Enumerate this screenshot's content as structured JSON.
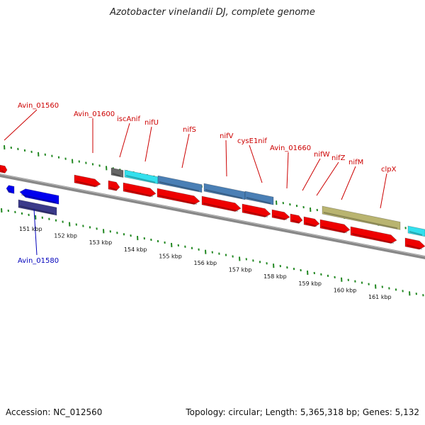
{
  "title": "Azotobacter vinelandii DJ, complete genome",
  "footer": {
    "accession": "Accession: NC_012560",
    "summary": "Topology: circular; Length: 5,365,318 bp; Genes: 5,132"
  },
  "colors": {
    "forward_gene": "#ee0000",
    "reverse_gene": "#0000ee",
    "label_forward": "#cc0000",
    "label_reverse": "#0000bb",
    "backbone": "#888888",
    "ticks": "#228822",
    "cyan": "#33e0ee",
    "steel": "#4a7fb5",
    "khaki": "#b9b470",
    "navy": "#3b3a8a",
    "gray": "#666666"
  },
  "kbp_labels": [
    "151 kbp",
    "152 kbp",
    "153 kbp",
    "154 kbp",
    "155 kbp",
    "156 kbp",
    "157 kbp",
    "158 kbp",
    "159 kbp",
    "160 kbp",
    "161 kbp"
  ],
  "gene_labels": [
    {
      "name": "Avin_01560",
      "strand": "forward"
    },
    {
      "name": "Avin_01600",
      "strand": "forward"
    },
    {
      "name": "iscAnif",
      "strand": "forward"
    },
    {
      "name": "nifU",
      "strand": "forward"
    },
    {
      "name": "nifS",
      "strand": "forward"
    },
    {
      "name": "nifV",
      "strand": "forward"
    },
    {
      "name": "cysE1nif",
      "strand": "forward"
    },
    {
      "name": "Avin_01660",
      "strand": "forward"
    },
    {
      "name": "nifW",
      "strand": "forward"
    },
    {
      "name": "nifZ",
      "strand": "forward"
    },
    {
      "name": "nifM",
      "strand": "forward"
    },
    {
      "name": "clpX",
      "strand": "forward"
    },
    {
      "name": "Avin_01580",
      "strand": "reverse"
    }
  ]
}
